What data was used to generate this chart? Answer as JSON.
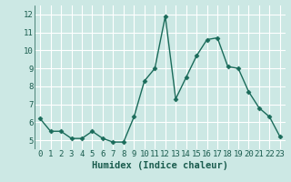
{
  "x": [
    0,
    1,
    2,
    3,
    4,
    5,
    6,
    7,
    8,
    9,
    10,
    11,
    12,
    13,
    14,
    15,
    16,
    17,
    18,
    19,
    20,
    21,
    22,
    23
  ],
  "y": [
    6.2,
    5.5,
    5.5,
    5.1,
    5.1,
    5.5,
    5.1,
    4.9,
    4.9,
    6.3,
    8.3,
    9.0,
    11.9,
    7.3,
    8.5,
    9.7,
    10.6,
    10.7,
    9.1,
    9.0,
    7.7,
    6.8,
    6.3,
    5.2
  ],
  "line_color": "#1a6b5a",
  "bg_color": "#cce8e4",
  "grid_color": "#ffffff",
  "xlabel": "Humidex (Indice chaleur)",
  "ylim": [
    4.5,
    12.5
  ],
  "xlim": [
    -0.5,
    23.5
  ],
  "yticks": [
    5,
    6,
    7,
    8,
    9,
    10,
    11,
    12
  ],
  "xticks": [
    0,
    1,
    2,
    3,
    4,
    5,
    6,
    7,
    8,
    9,
    10,
    11,
    12,
    13,
    14,
    15,
    16,
    17,
    18,
    19,
    20,
    21,
    22,
    23
  ],
  "marker": "D",
  "markersize": 2.5,
  "linewidth": 1.0,
  "font_color": "#1a5c4e",
  "xlabel_fontsize": 7.5,
  "tick_fontsize": 6.5
}
